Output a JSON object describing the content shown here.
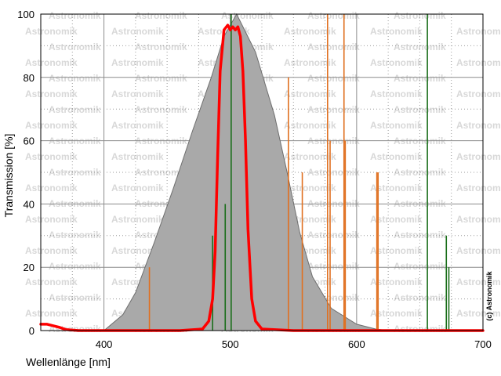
{
  "chart_data": {
    "type": "line",
    "xlabel": "Wellenlänge [nm]",
    "ylabel": "Transmission [%]",
    "xlim": [
      350,
      700
    ],
    "ylim": [
      0,
      100
    ],
    "x_ticks": [
      "400",
      "500",
      "600",
      "700"
    ],
    "y_ticks": [
      "0",
      "20",
      "40",
      "60",
      "80",
      "100"
    ],
    "grid": true,
    "watermark": "Astronomik",
    "copyright": "(c) Astronomik",
    "colors": {
      "filter_curve": "#ff0000",
      "sensitivity_fill": "#a9a9a9",
      "sensitivity_edge": "#6e6e6e",
      "orange_lines": "#e07020",
      "green_lines": "#1a6e1a"
    },
    "series": [
      {
        "style": "filled-area",
        "color": "#a9a9a9",
        "x": [
          350,
          400,
          415,
          425,
          440,
          455,
          470,
          485,
          495,
          505,
          520,
          535,
          545,
          555,
          565,
          580,
          600,
          615,
          625
        ],
        "y": [
          0,
          0,
          5,
          12,
          28,
          45,
          63,
          80,
          93,
          100,
          88,
          68,
          50,
          31,
          17,
          7,
          2,
          0.5,
          0
        ]
      },
      {
        "style": "line",
        "color": "#ff0000",
        "x": [
          350,
          355,
          360,
          365,
          370,
          380,
          400,
          430,
          460,
          478,
          483,
          486,
          488,
          490,
          492,
          495,
          498,
          500,
          502,
          504,
          506,
          508,
          510,
          512,
          514,
          517,
          520,
          525,
          550,
          600,
          650,
          700
        ],
        "y": [
          2,
          2,
          1.5,
          1,
          0.3,
          0,
          0,
          0,
          0,
          0.5,
          3,
          10,
          25,
          55,
          82,
          95,
          96.5,
          95,
          96,
          95,
          96,
          93,
          82,
          60,
          32,
          10,
          3,
          0.5,
          0,
          0,
          0,
          0
        ]
      },
      {
        "style": "spectral-lines",
        "color": "#e07020",
        "x": [
          436,
          546,
          557,
          577,
          579,
          590,
          591,
          616,
          617
        ],
        "y": [
          20,
          80,
          50,
          100,
          60,
          100,
          60,
          50,
          50
        ]
      },
      {
        "style": "spectral-lines",
        "color": "#1a6e1a",
        "x": [
          486,
          496,
          500.7,
          656,
          671,
          673
        ],
        "y": [
          30,
          40,
          100,
          100,
          30,
          20
        ]
      }
    ]
  }
}
